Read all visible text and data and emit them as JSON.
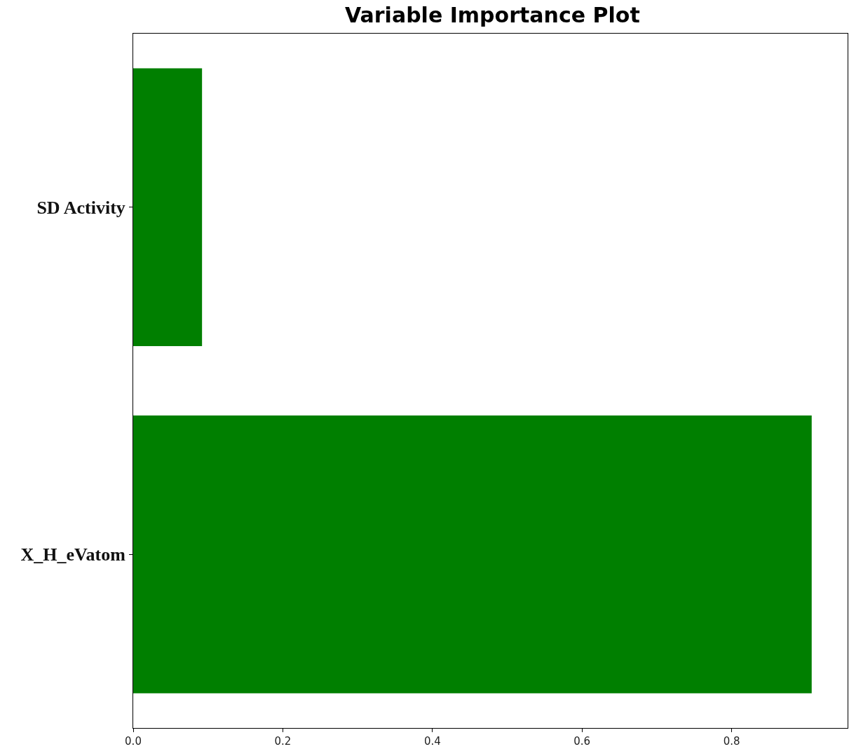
{
  "chart_data": {
    "type": "bar",
    "orientation": "horizontal",
    "title": "Variable Importance Plot",
    "categories": [
      "SD Activity",
      "X_H_eVatom"
    ],
    "values": [
      0.092,
      0.907
    ],
    "color": "#007f00",
    "xlim": [
      0,
      0.955
    ],
    "xticks": [
      {
        "value": 0,
        "label": "0.0"
      },
      {
        "value": 0.2,
        "label": "0.2"
      },
      {
        "value": 0.4,
        "label": "0.4"
      },
      {
        "value": 0.6,
        "label": "0.6"
      },
      {
        "value": 0.8,
        "label": "0.8"
      }
    ],
    "legend": false
  }
}
